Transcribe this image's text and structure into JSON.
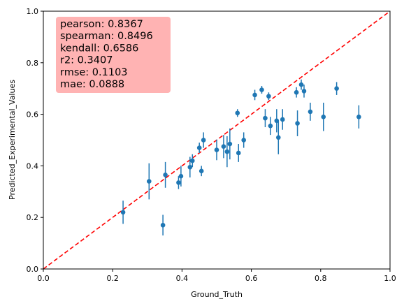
{
  "chart_data": {
    "type": "scatter",
    "xlabel": "Ground_Truth",
    "ylabel": "Predicted_Experimental_Values",
    "xlim": [
      0.0,
      1.0
    ],
    "ylim": [
      0.0,
      1.0
    ],
    "x_ticks": [
      "0.0",
      "0.2",
      "0.4",
      "0.6",
      "0.8",
      "1.0"
    ],
    "y_ticks": [
      "0.0",
      "0.2",
      "0.4",
      "0.6",
      "0.8",
      "1.0"
    ],
    "grid": false,
    "reference_line": {
      "type": "y=x",
      "style": "dashed",
      "color": "#ff0000"
    },
    "marker_color": "#1f77b4",
    "stats_box": {
      "color": "#ffb3b3",
      "lines": [
        "pearson: 0.8367",
        "spearman: 0.8496",
        "kendall: 0.6586",
        "r2: 0.3407",
        "rmse: 0.1103",
        "mae: 0.0888"
      ]
    },
    "points": [
      {
        "x": 0.23,
        "y": 0.22,
        "err": 0.045
      },
      {
        "x": 0.305,
        "y": 0.34,
        "err": 0.07
      },
      {
        "x": 0.345,
        "y": 0.17,
        "err": 0.04
      },
      {
        "x": 0.352,
        "y": 0.365,
        "err": 0.05
      },
      {
        "x": 0.39,
        "y": 0.335,
        "err": 0.025
      },
      {
        "x": 0.397,
        "y": 0.36,
        "err": 0.04
      },
      {
        "x": 0.423,
        "y": 0.395,
        "err": 0.04
      },
      {
        "x": 0.43,
        "y": 0.42,
        "err": 0.025
      },
      {
        "x": 0.45,
        "y": 0.47,
        "err": 0.02
      },
      {
        "x": 0.456,
        "y": 0.38,
        "err": 0.02
      },
      {
        "x": 0.462,
        "y": 0.5,
        "err": 0.03
      },
      {
        "x": 0.5,
        "y": 0.462,
        "err": 0.04
      },
      {
        "x": 0.52,
        "y": 0.475,
        "err": 0.045
      },
      {
        "x": 0.53,
        "y": 0.455,
        "err": 0.06
      },
      {
        "x": 0.538,
        "y": 0.485,
        "err": 0.06
      },
      {
        "x": 0.56,
        "y": 0.605,
        "err": 0.015
      },
      {
        "x": 0.563,
        "y": 0.45,
        "err": 0.035
      },
      {
        "x": 0.578,
        "y": 0.5,
        "err": 0.03
      },
      {
        "x": 0.61,
        "y": 0.675,
        "err": 0.02
      },
      {
        "x": 0.63,
        "y": 0.695,
        "err": 0.015
      },
      {
        "x": 0.64,
        "y": 0.585,
        "err": 0.035
      },
      {
        "x": 0.65,
        "y": 0.67,
        "err": 0.015
      },
      {
        "x": 0.655,
        "y": 0.555,
        "err": 0.035
      },
      {
        "x": 0.673,
        "y": 0.575,
        "err": 0.045
      },
      {
        "x": 0.678,
        "y": 0.51,
        "err": 0.065
      },
      {
        "x": 0.69,
        "y": 0.58,
        "err": 0.04
      },
      {
        "x": 0.73,
        "y": 0.685,
        "err": 0.02
      },
      {
        "x": 0.733,
        "y": 0.565,
        "err": 0.05
      },
      {
        "x": 0.744,
        "y": 0.715,
        "err": 0.02
      },
      {
        "x": 0.752,
        "y": 0.69,
        "err": 0.025
      },
      {
        "x": 0.77,
        "y": 0.61,
        "err": 0.035
      },
      {
        "x": 0.808,
        "y": 0.59,
        "err": 0.055
      },
      {
        "x": 0.846,
        "y": 0.7,
        "err": 0.025
      },
      {
        "x": 0.91,
        "y": 0.59,
        "err": 0.045
      }
    ]
  }
}
